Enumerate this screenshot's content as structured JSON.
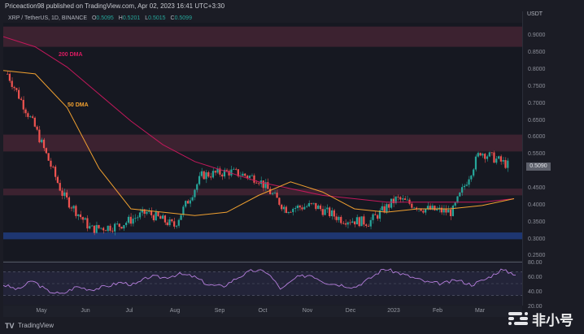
{
  "header": {
    "publisher_line": "Priceaction98 published on TradingView.com, Apr 02, 2023 16:41 UTC+3:30",
    "symbol_line": "XRP / TetherUS, 1D, BINANCE",
    "ohlc": [
      {
        "key": "O",
        "value": "0.5095"
      },
      {
        "key": "H",
        "value": "0.5201"
      },
      {
        "key": "L",
        "value": "0.5015"
      },
      {
        "key": "C",
        "value": "0.5099"
      }
    ]
  },
  "price_axis": {
    "unit": "USDT",
    "ticks": [
      "0.9000",
      "0.8500",
      "0.8000",
      "0.7500",
      "0.7000",
      "0.6500",
      "0.6000",
      "0.5500",
      "0.4500",
      "0.4000",
      "0.3500",
      "0.3000",
      "0.2500"
    ],
    "last_price": "0.5090"
  },
  "rsi_axis": {
    "ticks": [
      "80.00",
      "60.00",
      "40.00",
      "20.00"
    ]
  },
  "time_axis": {
    "labels": [
      "May",
      "Jun",
      "Jul",
      "Aug",
      "Sep",
      "Oct",
      "Nov",
      "Dec",
      "2023",
      "Feb",
      "Mar"
    ]
  },
  "annotations": {
    "dma200_label": "200 DMA",
    "dma50_label": "50 DMA"
  },
  "footer": {
    "brand": "TradingView",
    "logo_glyph": "TV"
  },
  "watermark": {
    "text": "非小号"
  },
  "colors": {
    "background": "#161821",
    "resistance_zone": "#4a2535",
    "support_zone": "#1f3a7a",
    "dma200": "#c2185b",
    "dma50": "#f0a030",
    "rsi_line": "#b57edc",
    "bull": "#26a69a",
    "bear": "#ef5350"
  },
  "chart_data": [
    {
      "type": "candlestick",
      "title": "XRP / TetherUS, 1D, BINANCE",
      "ylabel": "USDT",
      "ylim": [
        0.23,
        0.93
      ],
      "x_ticks": [
        "May",
        "Jun",
        "Jul",
        "Aug",
        "Sep",
        "Oct",
        "Nov",
        "Dec",
        "2023",
        "Feb",
        "Mar"
      ],
      "y_ticks": [
        0.25,
        0.3,
        0.35,
        0.4,
        0.45,
        0.5,
        0.55,
        0.6,
        0.65,
        0.7,
        0.75,
        0.8,
        0.85,
        0.9
      ],
      "last_ohlc": {
        "open": 0.5095,
        "high": 0.5201,
        "low": 0.5015,
        "close": 0.5099
      },
      "last_price_label": 0.509,
      "approx_close_path": {
        "x": [
          "Apr",
          "May-mid",
          "Jun",
          "Jun-mid",
          "Jul",
          "Aug",
          "Sep",
          "Sep-end",
          "Oct",
          "Oct-end",
          "Nov",
          "Nov-mid",
          "Dec",
          "2023",
          "Feb",
          "Mar",
          "Mar-mid",
          "Mar-end",
          "Apr-02"
        ],
        "values": [
          0.78,
          0.62,
          0.42,
          0.32,
          0.33,
          0.37,
          0.33,
          0.48,
          0.49,
          0.47,
          0.38,
          0.39,
          0.35,
          0.34,
          0.41,
          0.38,
          0.37,
          0.55,
          0.51
        ]
      },
      "zones": [
        {
          "name": "resistance",
          "range": [
            0.86,
            0.92
          ],
          "color": "#4a2535"
        },
        {
          "name": "resistance",
          "range": [
            0.55,
            0.6
          ],
          "color": "#4a2535"
        },
        {
          "name": "resistance",
          "range": [
            0.42,
            0.44
          ],
          "color": "#4a2535"
        },
        {
          "name": "support",
          "range": [
            0.29,
            0.31
          ],
          "color": "#1f3a7a"
        }
      ],
      "series": [
        {
          "name": "200 DMA",
          "color": "#c2185b",
          "values": [
            0.89,
            0.86,
            0.8,
            0.72,
            0.64,
            0.57,
            0.52,
            0.49,
            0.46,
            0.44,
            0.42,
            0.41,
            0.4,
            0.4,
            0.4,
            0.4,
            0.41
          ]
        },
        {
          "name": "50 DMA",
          "color": "#f0a030",
          "values": [
            0.79,
            0.78,
            0.68,
            0.5,
            0.38,
            0.37,
            0.36,
            0.37,
            0.42,
            0.46,
            0.43,
            0.38,
            0.37,
            0.38,
            0.38,
            0.39,
            0.41
          ]
        }
      ],
      "annotations": [
        "200 DMA",
        "50 DMA"
      ]
    },
    {
      "type": "line",
      "title": "RSI",
      "ylim": [
        15,
        85
      ],
      "y_ticks": [
        20,
        40,
        60,
        80
      ],
      "guide_lines": [
        70,
        50,
        30
      ],
      "x_ticks": [
        "May",
        "Jun",
        "Jul",
        "Aug",
        "Sep",
        "Oct",
        "Nov",
        "Dec",
        "2023",
        "Feb",
        "Mar"
      ],
      "series": [
        {
          "name": "RSI",
          "color": "#b57edc",
          "values": [
            48,
            40,
            55,
            38,
            32,
            45,
            40,
            45,
            52,
            48,
            62,
            60,
            66,
            62,
            48,
            45,
            60,
            72,
            70,
            40,
            60,
            65,
            52,
            48,
            44,
            58,
            75,
            68,
            60,
            52,
            50,
            56,
            48,
            58,
            73,
            66
          ]
        }
      ]
    }
  ]
}
